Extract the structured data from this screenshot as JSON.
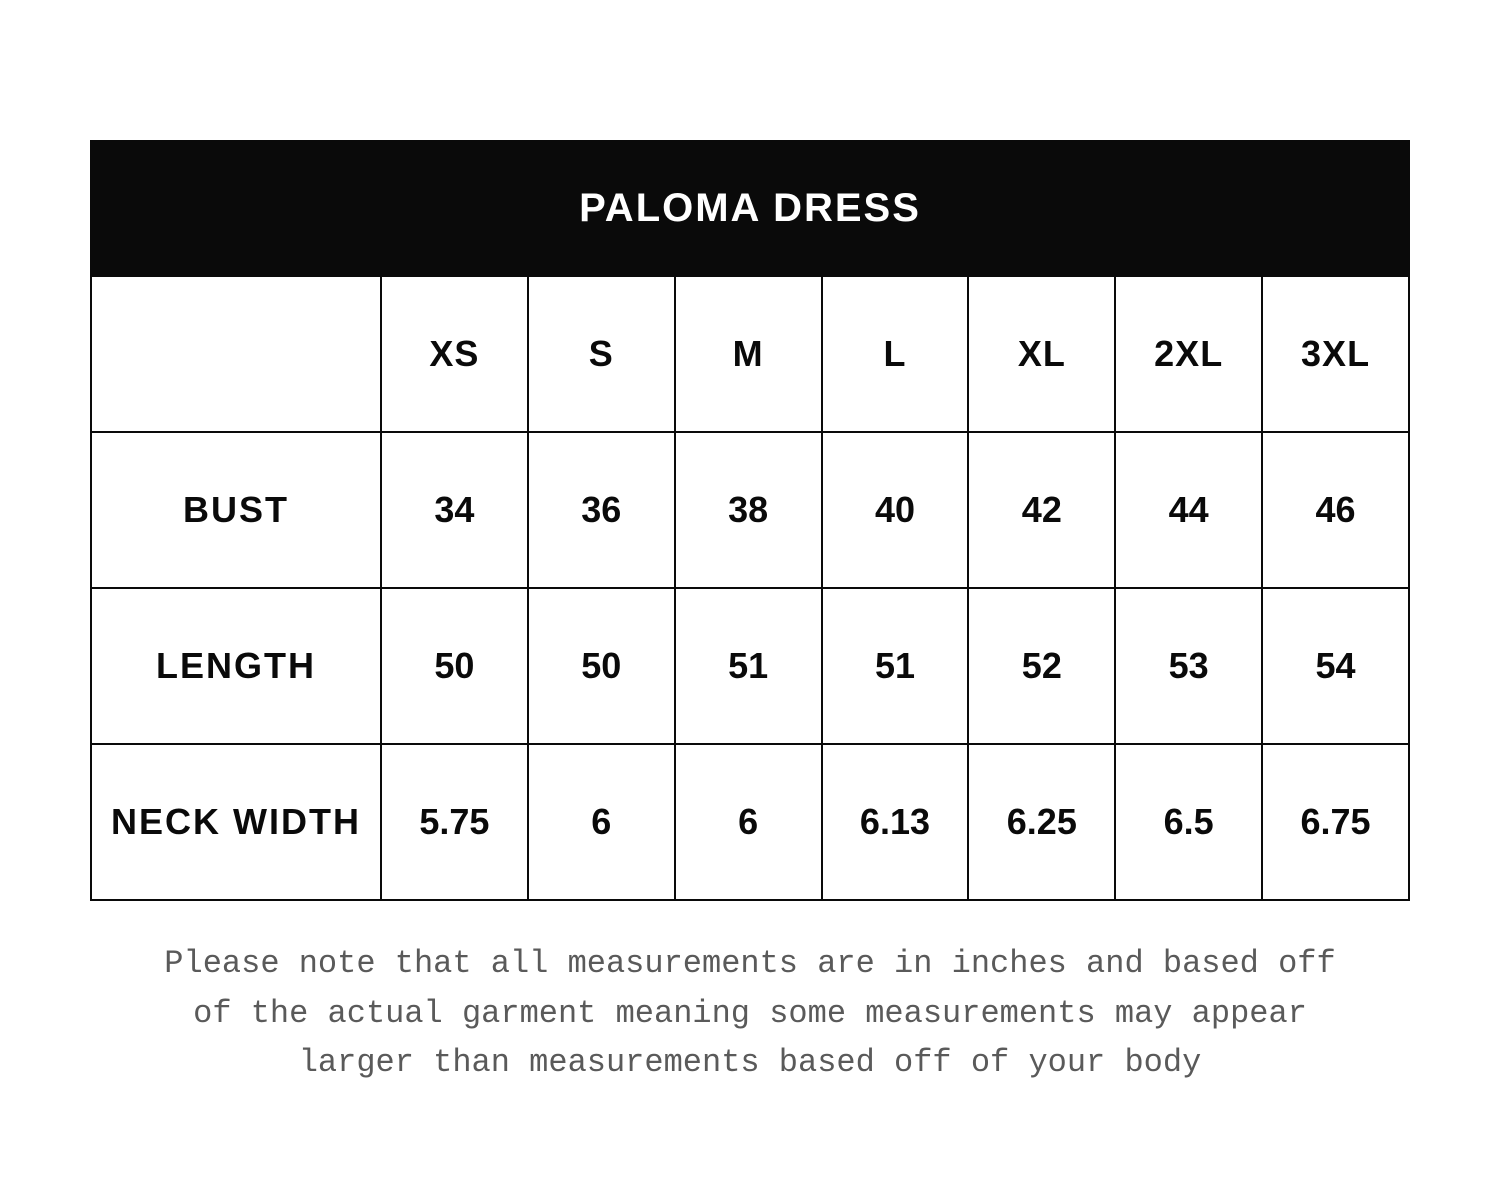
{
  "table": {
    "title": "PALOMA DRESS",
    "title_bg_color": "#0a0a0a",
    "title_text_color": "#ffffff",
    "title_fontsize": 40,
    "border_color": "#0a0a0a",
    "border_width": 2,
    "cell_bg_color": "#ffffff",
    "cell_text_color": "#0a0a0a",
    "header_fontsize": 36,
    "data_fontsize": 36,
    "first_column_width_pct": 22,
    "columns": [
      "",
      "XS",
      "S",
      "M",
      "L",
      "XL",
      "2XL",
      "3XL"
    ],
    "rows": [
      {
        "label": "BUST",
        "values": [
          "34",
          "36",
          "38",
          "40",
          "42",
          "44",
          "46"
        ]
      },
      {
        "label": "LENGTH",
        "values": [
          "50",
          "50",
          "51",
          "51",
          "52",
          "53",
          "54"
        ]
      },
      {
        "label": "NECK WIDTH",
        "values": [
          "5.75",
          "6",
          "6",
          "6.13",
          "6.25",
          "6.5",
          "6.75"
        ]
      }
    ]
  },
  "footnote": {
    "text": "Please note that all measurements are in inches and based off of the actual garment meaning some measurements may appear larger than measurements based off of your body",
    "font_family": "Courier New",
    "fontsize": 32,
    "text_color": "#5a5a5a"
  }
}
